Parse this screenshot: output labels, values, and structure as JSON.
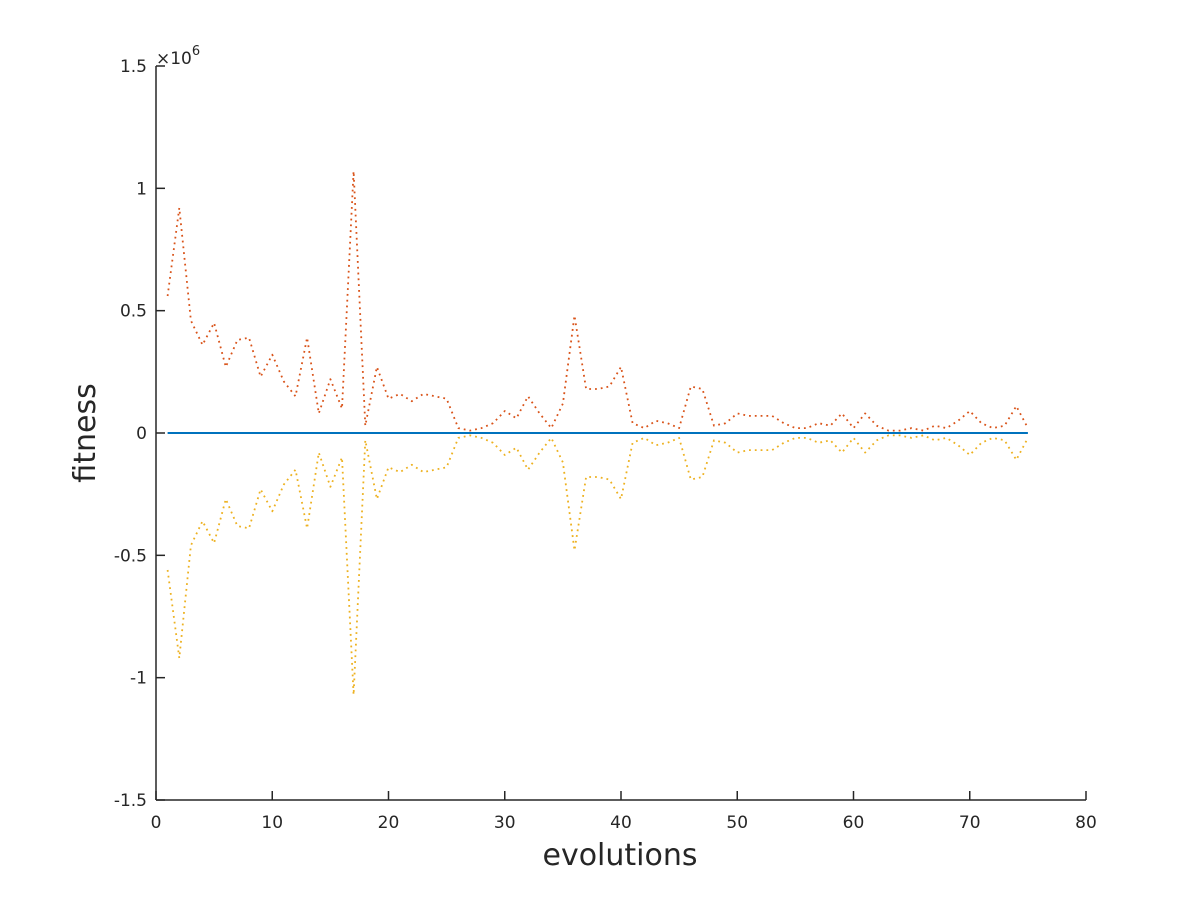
{
  "chart_data": {
    "type": "line",
    "title": "",
    "xlabel": "evolutions",
    "ylabel": "fitness",
    "xlim": [
      0,
      80
    ],
    "ylim": [
      -1.5,
      1.5
    ],
    "x_ticks": [
      0,
      10,
      20,
      30,
      40,
      50,
      60,
      70,
      80
    ],
    "y_ticks": [
      -1.5,
      -1,
      -0.5,
      0,
      0.5,
      1,
      1.5
    ],
    "y_tick_labels": [
      "-1.5",
      "-1",
      "-0.5",
      "0",
      "0.5",
      "1",
      "1.5"
    ],
    "y_exponent": {
      "prefix": "×10",
      "power": "6"
    },
    "grid": false,
    "legend": "none",
    "x": [
      1,
      2,
      3,
      4,
      5,
      6,
      7,
      8,
      9,
      10,
      11,
      12,
      13,
      14,
      15,
      16,
      17,
      18,
      19,
      20,
      21,
      22,
      23,
      24,
      25,
      26,
      27,
      28,
      29,
      30,
      31,
      32,
      33,
      34,
      35,
      36,
      37,
      38,
      39,
      40,
      41,
      42,
      43,
      44,
      45,
      46,
      47,
      48,
      49,
      50,
      51,
      52,
      53,
      54,
      55,
      56,
      57,
      58,
      59,
      60,
      61,
      62,
      63,
      64,
      65,
      66,
      67,
      68,
      69,
      70,
      71,
      72,
      73,
      74,
      75
    ],
    "series": [
      {
        "color": "#0072BD",
        "style": "solid",
        "values": [
          0,
          0,
          0,
          0,
          0,
          0,
          0,
          0,
          0,
          0,
          0,
          0,
          0,
          0,
          0,
          0,
          0,
          0,
          0,
          0,
          0,
          0,
          0,
          0,
          0,
          0,
          0,
          0,
          0,
          0,
          0,
          0,
          0,
          0,
          0,
          0,
          0,
          0,
          0,
          0,
          0,
          0,
          0,
          0,
          0,
          0,
          0,
          0,
          0,
          0,
          0,
          0,
          0,
          0,
          0,
          0,
          0,
          0,
          0,
          0,
          0,
          0,
          0,
          0,
          0,
          0,
          0,
          0,
          0,
          0,
          0,
          0,
          0,
          0,
          0
        ]
      },
      {
        "color": "#D95319",
        "style": "dotted",
        "values": [
          0.56,
          0.92,
          0.46,
          0.36,
          0.45,
          0.27,
          0.38,
          0.39,
          0.23,
          0.32,
          0.21,
          0.15,
          0.39,
          0.08,
          0.22,
          0.1,
          1.07,
          0.03,
          0.27,
          0.14,
          0.16,
          0.13,
          0.16,
          0.15,
          0.14,
          0.02,
          0.01,
          0.02,
          0.04,
          0.09,
          0.06,
          0.15,
          0.08,
          0.02,
          0.12,
          0.48,
          0.18,
          0.18,
          0.19,
          0.27,
          0.04,
          0.02,
          0.05,
          0.04,
          0.02,
          0.19,
          0.18,
          0.03,
          0.04,
          0.08,
          0.07,
          0.07,
          0.07,
          0.04,
          0.02,
          0.02,
          0.04,
          0.03,
          0.08,
          0.02,
          0.08,
          0.03,
          0.01,
          0.01,
          0.02,
          0.01,
          0.03,
          0.02,
          0.05,
          0.09,
          0.04,
          0.02,
          0.03,
          0.11,
          0.02
        ]
      },
      {
        "color": "#EDB120",
        "style": "dotted",
        "values": [
          -0.56,
          -0.92,
          -0.46,
          -0.36,
          -0.45,
          -0.27,
          -0.38,
          -0.39,
          -0.23,
          -0.32,
          -0.21,
          -0.15,
          -0.39,
          -0.08,
          -0.22,
          -0.1,
          -1.07,
          -0.03,
          -0.27,
          -0.14,
          -0.16,
          -0.13,
          -0.16,
          -0.15,
          -0.14,
          -0.02,
          -0.01,
          -0.02,
          -0.04,
          -0.09,
          -0.06,
          -0.15,
          -0.08,
          -0.02,
          -0.12,
          -0.48,
          -0.18,
          -0.18,
          -0.19,
          -0.27,
          -0.04,
          -0.02,
          -0.05,
          -0.04,
          -0.02,
          -0.19,
          -0.18,
          -0.03,
          -0.04,
          -0.08,
          -0.07,
          -0.07,
          -0.07,
          -0.04,
          -0.02,
          -0.02,
          -0.04,
          -0.03,
          -0.08,
          -0.02,
          -0.08,
          -0.03,
          -0.01,
          -0.01,
          -0.02,
          -0.01,
          -0.03,
          -0.02,
          -0.05,
          -0.09,
          -0.04,
          -0.02,
          -0.03,
          -0.11,
          -0.02
        ]
      }
    ]
  }
}
